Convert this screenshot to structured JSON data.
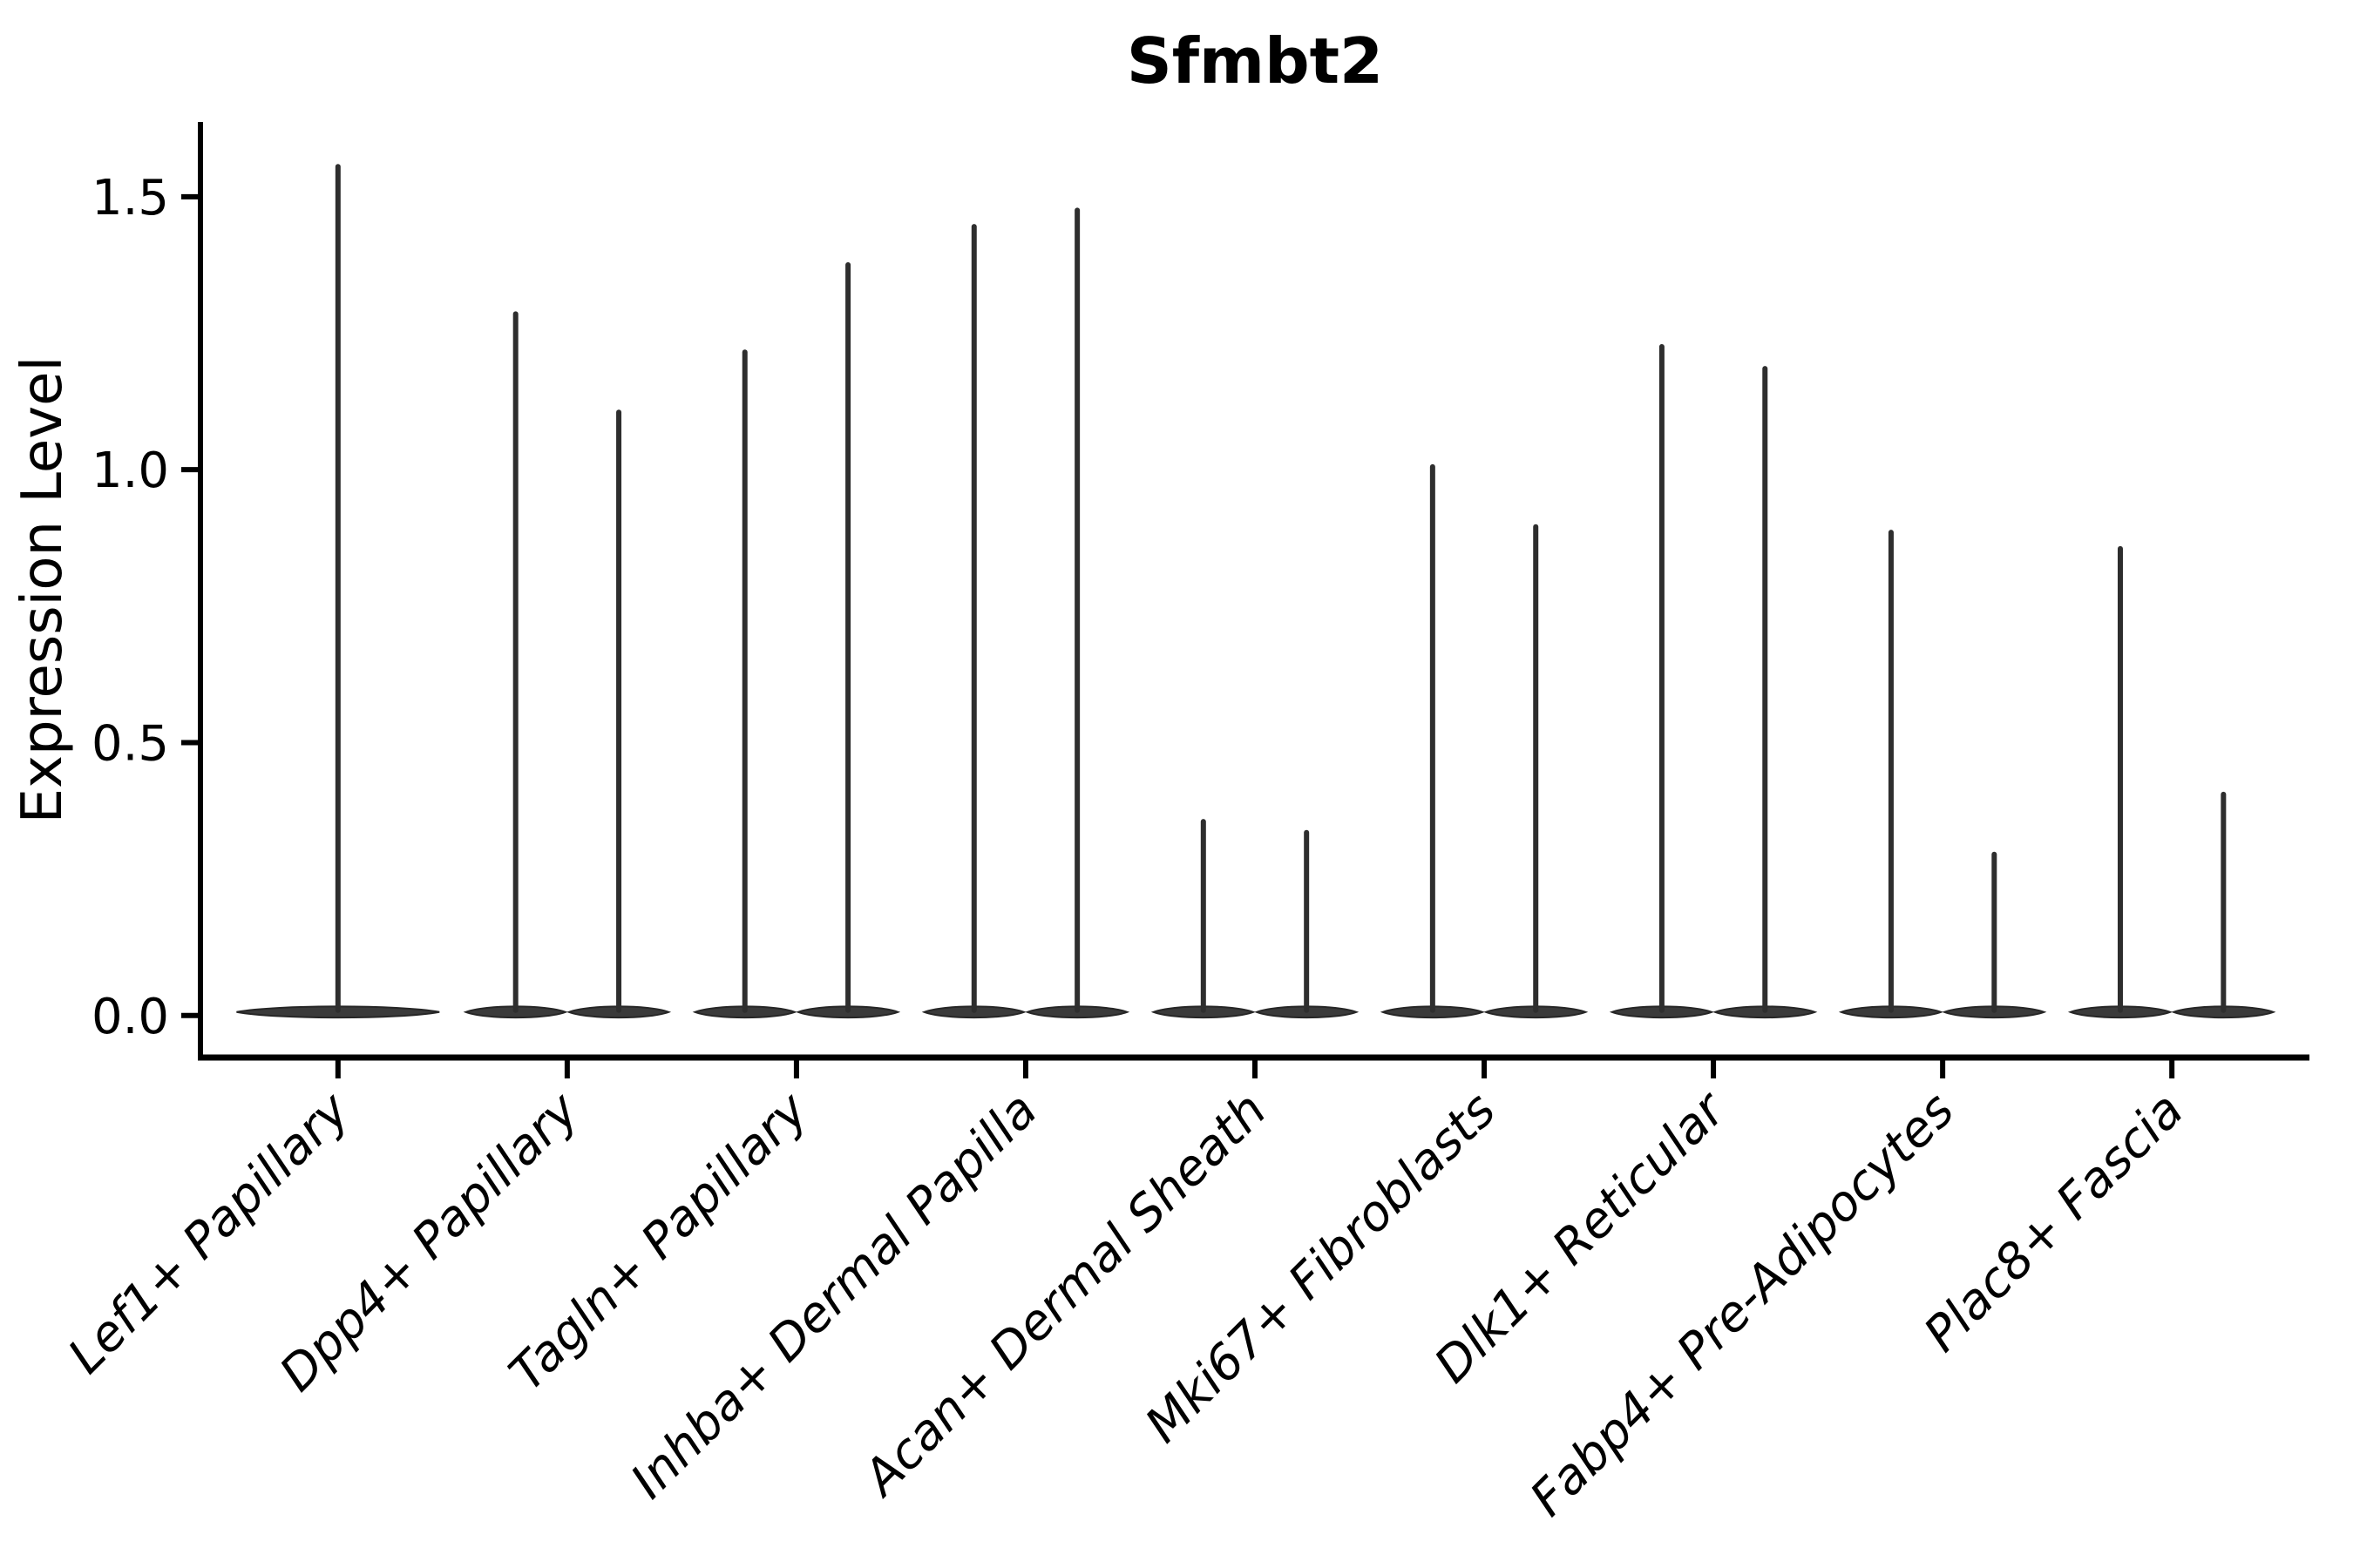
{
  "figure": {
    "title": "Sfmbt2",
    "y_axis_label": "Expression Level"
  },
  "chart_data": {
    "type": "violin",
    "title": "Sfmbt2",
    "xlabel": "",
    "ylabel": "Expression Level",
    "yticks": [
      "0.0",
      "0.5",
      "1.0",
      "1.5"
    ],
    "ylim": [
      -0.077,
      1.637
    ],
    "x_tick_rotation_deg": 45,
    "grid": "off",
    "legend": "none",
    "background_color": "#ffffff",
    "violin_fill_color": "#3a3a3a",
    "violin_edge_color": "#262626",
    "spike_color": "#2e2e2e",
    "axis_color": "#000000",
    "violin_baseline_value": 0.0,
    "categories": [
      {
        "label": "Lef1+ Papillary",
        "violin_maxima": [
          1.56
        ]
      },
      {
        "label": "Dpp4+ Papillary",
        "violin_maxima": [
          1.29,
          1.11
        ]
      },
      {
        "label": "Tagln+ Papillary",
        "violin_maxima": [
          1.22,
          1.38
        ]
      },
      {
        "label": "Inhba+ Dermal Papilla",
        "violin_maxima": [
          1.45,
          1.48
        ]
      },
      {
        "label": "Acan+ Dermal Sheath",
        "violin_maxima": [
          0.36,
          0.34
        ]
      },
      {
        "label": "Mki67+ Fibroblasts",
        "violin_maxima": [
          1.01,
          0.9
        ]
      },
      {
        "label": "Dlk1+ Reticular",
        "violin_maxima": [
          1.23,
          1.19
        ]
      },
      {
        "label": "Fabp4+ Pre-Adipocytes",
        "violin_maxima": [
          0.89,
          0.3
        ]
      },
      {
        "label": "Plac8+ Fascia",
        "violin_maxima": [
          0.86,
          0.41
        ]
      }
    ]
  }
}
